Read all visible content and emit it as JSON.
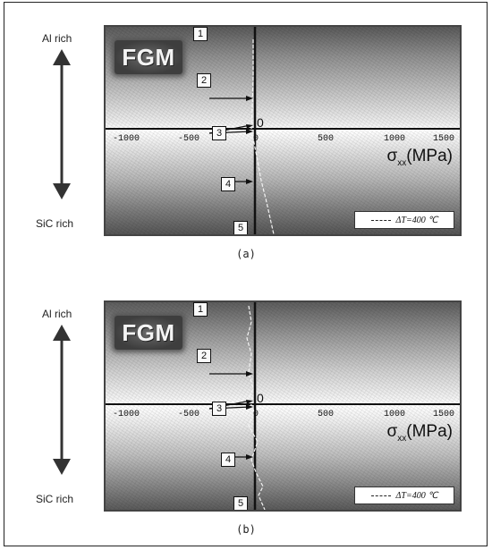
{
  "colors": {
    "frame": "#222222",
    "curve": "#f4f4f4",
    "axis": "#111111"
  },
  "figures": [
    {
      "caption": "(a)",
      "label_top": "Al rich",
      "label_bottom": "SiC rich",
      "fgm_text": "FGM",
      "origin": "0",
      "xlabel_sym": "σ",
      "xlabel_sub": "xx",
      "xlabel_unit": "(MPa)",
      "ticks": [
        "-1000",
        "-500",
        "0",
        "500",
        "1000",
        "1500"
      ],
      "markers": [
        "1",
        "2",
        "3",
        "4",
        "5"
      ],
      "legend_text": "ΔT=400 ℃"
    },
    {
      "caption": "(b)",
      "label_top": "Al rich",
      "label_bottom": "SiC rich",
      "fgm_text": "FGM",
      "origin": "0",
      "xlabel_sym": "σ",
      "xlabel_sub": "xx",
      "xlabel_unit": "(MPa)",
      "ticks": [
        "-1000",
        "-500",
        "0",
        "500",
        "1000",
        "1500"
      ],
      "markers": [
        "1",
        "2",
        "3",
        "4",
        "5"
      ],
      "legend_text": "ΔT=400 ℃"
    }
  ]
}
